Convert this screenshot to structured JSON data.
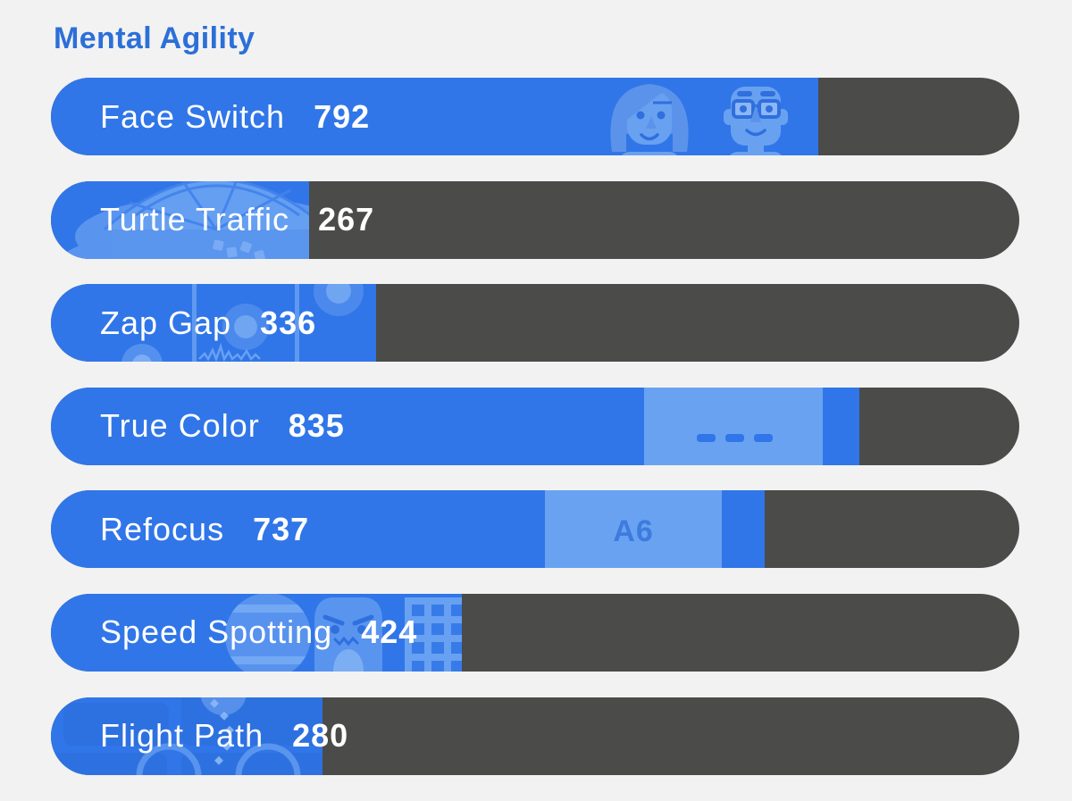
{
  "section": {
    "title": "Mental Agility"
  },
  "scale": {
    "min": 0,
    "max": 1000
  },
  "colors": {
    "background": "#F2F2F2",
    "track": "#4B4B49",
    "fill": "#3076E8",
    "fill_light": "#6AA2F2",
    "icon_light": "#5E98EF",
    "icon_lighter": "#7FB0F4",
    "icon_detail": "#2F6FDE",
    "title": "#2C6FD8",
    "text": "#FFFFFF",
    "card_text": "#3D7BDE"
  },
  "rows": [
    {
      "label": "Face Switch",
      "score": 792,
      "icon": "faces-icon"
    },
    {
      "label": "Turtle Traffic",
      "score": 267,
      "icon": "turtle-icon"
    },
    {
      "label": "Zap Gap",
      "score": 336,
      "icon": "zap-lanes-icon"
    },
    {
      "label": "True Color",
      "score": 835,
      "icon": "color-dashes-icon"
    },
    {
      "label": "Refocus",
      "score": 737,
      "icon": "letter-card-icon",
      "card_text": "A6"
    },
    {
      "label": "Speed Spotting",
      "score": 424,
      "icon": "spotting-scene-icon"
    },
    {
      "label": "Flight Path",
      "score": 280,
      "icon": "flight-path-icon"
    }
  ],
  "chart_data": {
    "type": "bar",
    "orientation": "horizontal",
    "categories": [
      "Face Switch",
      "Turtle Traffic",
      "Zap Gap",
      "True Color",
      "Refocus",
      "Speed Spotting",
      "Flight Path"
    ],
    "values": [
      792,
      267,
      336,
      835,
      737,
      424,
      280
    ],
    "title": "Mental Agility",
    "xlabel": "",
    "ylabel": "",
    "xlim": [
      0,
      1000
    ],
    "grid": false,
    "legend": false
  }
}
